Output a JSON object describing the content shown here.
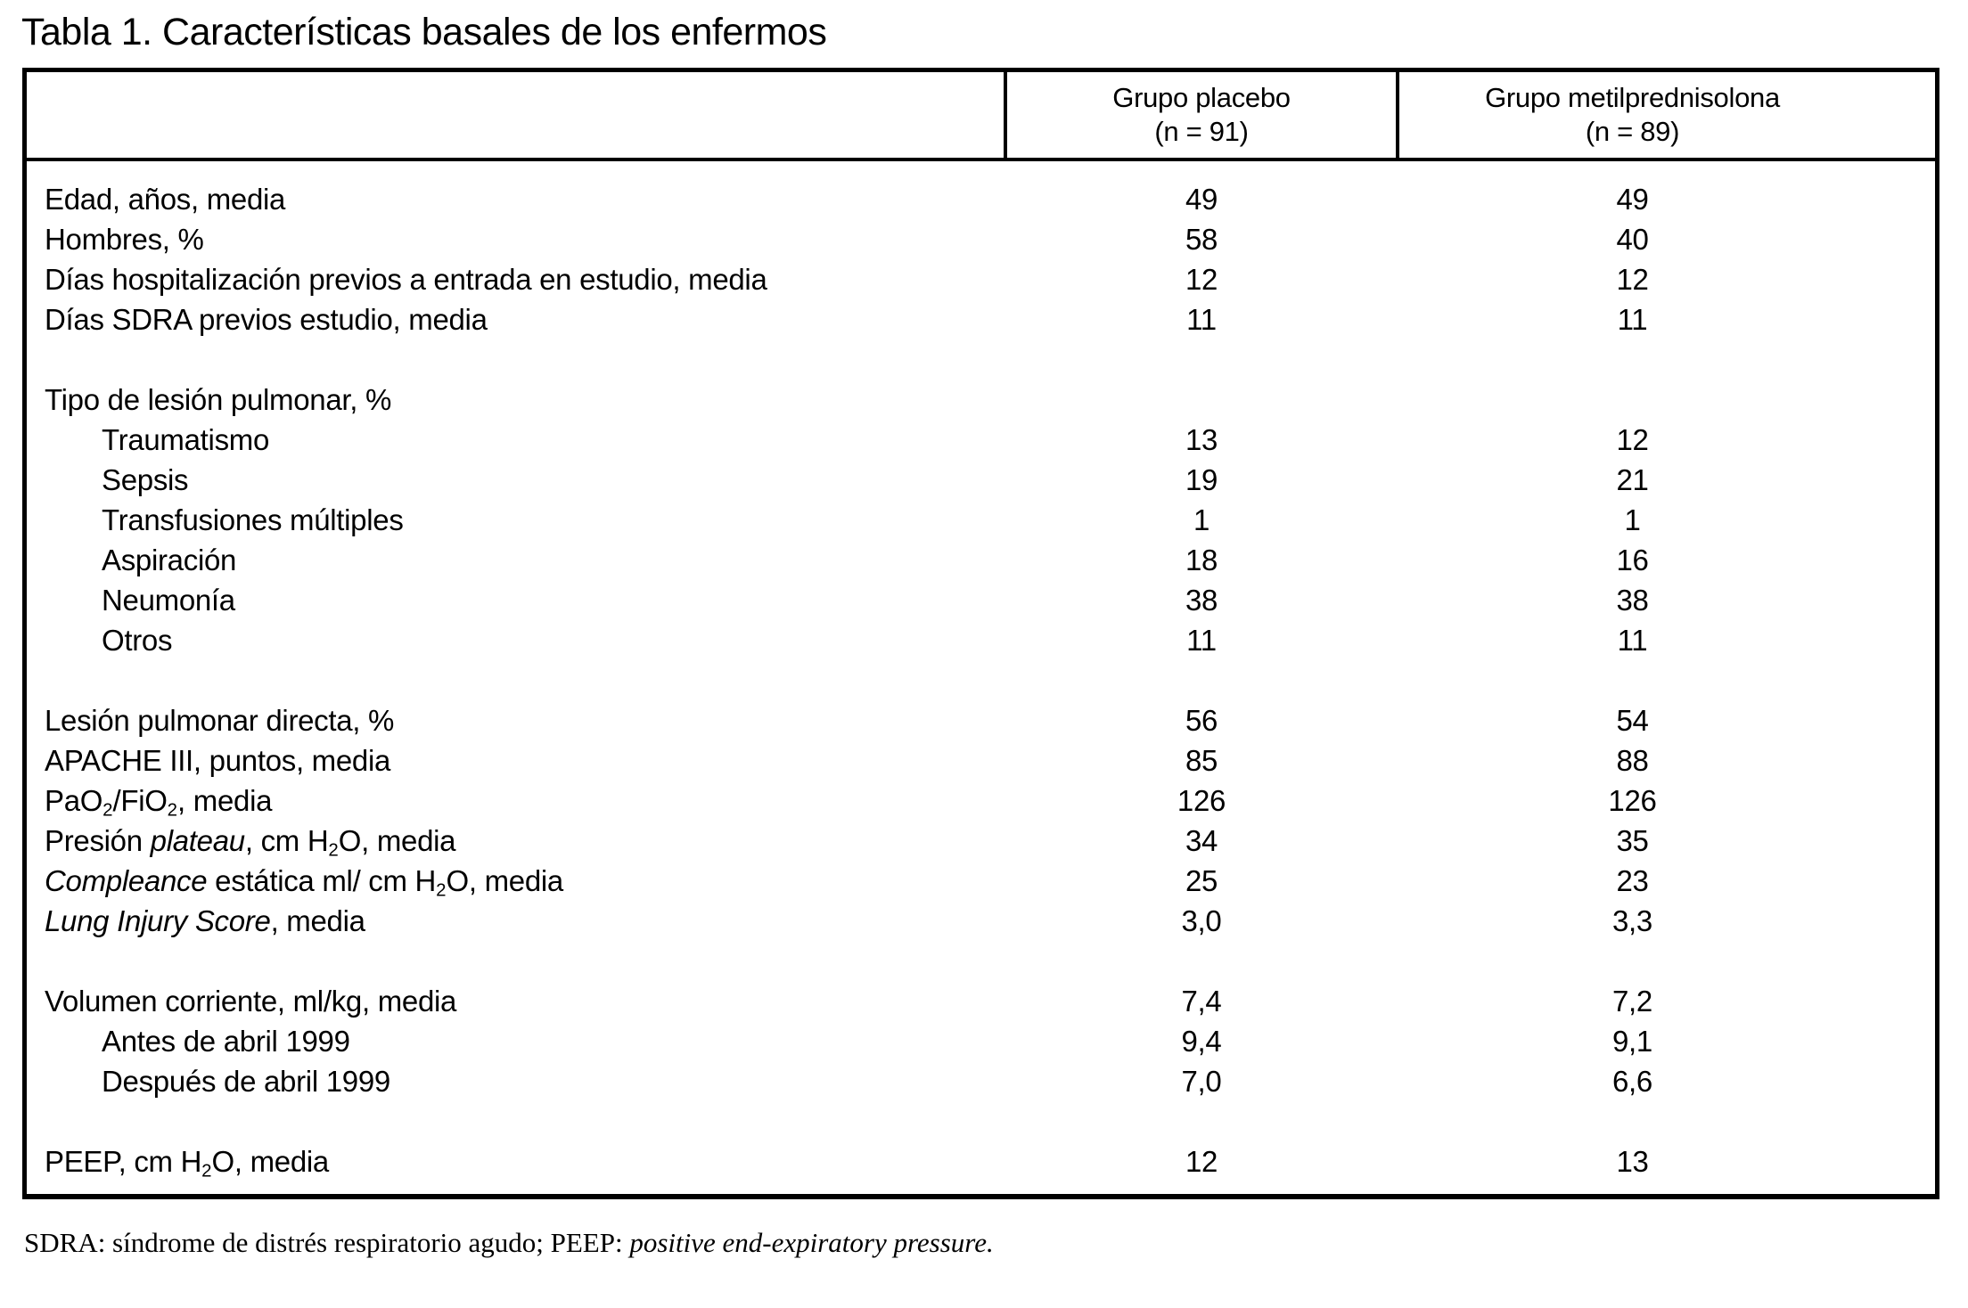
{
  "title": "Tabla 1. Características basales de los enfermos",
  "table": {
    "columns": [
      {
        "line1": "Grupo placebo",
        "line2": "(n = 91)"
      },
      {
        "line1": "Grupo metilprednisolona",
        "line2": "(n = 89)"
      }
    ],
    "rows": [
      {
        "label": [
          {
            "t": "Edad, años, media"
          }
        ],
        "indent": 0,
        "values": [
          "49",
          "49"
        ]
      },
      {
        "label": [
          {
            "t": "Hombres, %"
          }
        ],
        "indent": 0,
        "values": [
          "58",
          "40"
        ]
      },
      {
        "label": [
          {
            "t": "Días hospitalización previos a entrada en estudio, media"
          }
        ],
        "indent": 0,
        "values": [
          "12",
          "12"
        ]
      },
      {
        "label": [
          {
            "t": "Días SDRA previos estudio, media"
          }
        ],
        "indent": 0,
        "values": [
          "11",
          "11"
        ]
      },
      {
        "spacer": true
      },
      {
        "label": [
          {
            "t": "Tipo de lesión pulmonar, %"
          }
        ],
        "indent": 0,
        "values": [
          "",
          ""
        ]
      },
      {
        "label": [
          {
            "t": "Traumatismo"
          }
        ],
        "indent": 1,
        "values": [
          "13",
          "12"
        ]
      },
      {
        "label": [
          {
            "t": "Sepsis"
          }
        ],
        "indent": 1,
        "values": [
          "19",
          "21"
        ]
      },
      {
        "label": [
          {
            "t": "Transfusiones múltiples"
          }
        ],
        "indent": 1,
        "values": [
          "1",
          "1"
        ]
      },
      {
        "label": [
          {
            "t": "Aspiración"
          }
        ],
        "indent": 1,
        "values": [
          "18",
          "16"
        ]
      },
      {
        "label": [
          {
            "t": "Neumonía"
          }
        ],
        "indent": 1,
        "values": [
          "38",
          "38"
        ]
      },
      {
        "label": [
          {
            "t": "Otros"
          }
        ],
        "indent": 1,
        "values": [
          "11",
          "11"
        ]
      },
      {
        "spacer": true
      },
      {
        "label": [
          {
            "t": "Lesión pulmonar directa, %"
          }
        ],
        "indent": 0,
        "values": [
          "56",
          "54"
        ]
      },
      {
        "label": [
          {
            "t": "APACHE III, puntos, media"
          }
        ],
        "indent": 0,
        "values": [
          "85",
          "88"
        ]
      },
      {
        "label": [
          {
            "t": "PaO"
          },
          {
            "t": "2",
            "sub": true
          },
          {
            "t": "/FiO"
          },
          {
            "t": "2",
            "sub": true
          },
          {
            "t": ", media"
          }
        ],
        "indent": 0,
        "values": [
          "126",
          "126"
        ]
      },
      {
        "label": [
          {
            "t": "Presión "
          },
          {
            "t": "plateau",
            "i": true
          },
          {
            "t": ", cm H"
          },
          {
            "t": "2",
            "sub": true
          },
          {
            "t": "O, media"
          }
        ],
        "indent": 0,
        "values": [
          "34",
          "35"
        ]
      },
      {
        "label": [
          {
            "t": "Compleance",
            "i": true
          },
          {
            "t": " estática ml/ cm H"
          },
          {
            "t": "2",
            "sub": true
          },
          {
            "t": "O, media"
          }
        ],
        "indent": 0,
        "values": [
          "25",
          "23"
        ]
      },
      {
        "label": [
          {
            "t": "Lung Injury Score",
            "i": true
          },
          {
            "t": ", media"
          }
        ],
        "indent": 0,
        "values": [
          "3,0",
          "3,3"
        ]
      },
      {
        "spacer": true
      },
      {
        "label": [
          {
            "t": "Volumen corriente, ml/kg, media"
          }
        ],
        "indent": 0,
        "values": [
          "7,4",
          "7,2"
        ]
      },
      {
        "label": [
          {
            "t": "Antes de abril 1999"
          }
        ],
        "indent": 1,
        "values": [
          "9,4",
          "9,1"
        ]
      },
      {
        "label": [
          {
            "t": "Después de abril 1999"
          }
        ],
        "indent": 1,
        "values": [
          "7,0",
          "6,6"
        ]
      },
      {
        "spacer": true
      },
      {
        "label": [
          {
            "t": "PEEP, cm H"
          },
          {
            "t": "2",
            "sub": true
          },
          {
            "t": "O, media"
          }
        ],
        "indent": 0,
        "values": [
          "12",
          "13"
        ]
      }
    ]
  },
  "footnote": [
    {
      "t": "SDRA: síndrome de distrés respiratorio agudo; PEEP: "
    },
    {
      "t": "positive end-expiratory pressure.",
      "i": true
    }
  ]
}
